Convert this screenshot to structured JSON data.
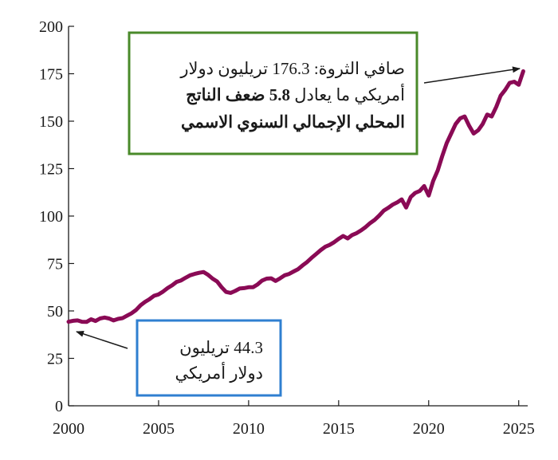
{
  "colors": {
    "series": "#8a0a55",
    "axis": "#1a1a1a",
    "box_green": "#4a8a2a",
    "box_blue": "#2f7fd0"
  },
  "chart_data": {
    "type": "line",
    "title": "",
    "xlabel": "",
    "ylabel": "",
    "xlim": [
      2000,
      2025.5
    ],
    "ylim": [
      0,
      200
    ],
    "grid": false,
    "x_ticks": [
      "2000",
      "2005",
      "2010",
      "2015",
      "2020",
      "2025"
    ],
    "y_ticks": [
      "0",
      "25",
      "50",
      "75",
      "100",
      "125",
      "150",
      "175",
      "200"
    ],
    "series": [
      {
        "x": [
          2000.0,
          2000.25,
          2000.5,
          2000.75,
          2001.0,
          2001.25,
          2001.5,
          2001.75,
          2002.0,
          2002.25,
          2002.5,
          2002.75,
          2003.0,
          2003.25,
          2003.5,
          2003.75,
          2004.0,
          2004.25,
          2004.5,
          2004.75,
          2005.0,
          2005.25,
          2005.5,
          2005.75,
          2006.0,
          2006.25,
          2006.5,
          2006.75,
          2007.0,
          2007.25,
          2007.5,
          2007.75,
          2008.0,
          2008.25,
          2008.5,
          2008.75,
          2009.0,
          2009.25,
          2009.5,
          2009.75,
          2010.0,
          2010.25,
          2010.5,
          2010.75,
          2011.0,
          2011.25,
          2011.5,
          2011.75,
          2012.0,
          2012.25,
          2012.5,
          2012.75,
          2013.0,
          2013.25,
          2013.5,
          2013.75,
          2014.0,
          2014.25,
          2014.5,
          2014.75,
          2015.0,
          2015.25,
          2015.5,
          2015.75,
          2016.0,
          2016.25,
          2016.5,
          2016.75,
          2017.0,
          2017.25,
          2017.5,
          2017.75,
          2018.0,
          2018.25,
          2018.5,
          2018.75,
          2019.0,
          2019.25,
          2019.5,
          2019.75,
          2020.0,
          2020.25,
          2020.5,
          2020.75,
          2021.0,
          2021.25,
          2021.5,
          2021.75,
          2022.0,
          2022.25,
          2022.5,
          2022.75,
          2023.0,
          2023.25,
          2023.5,
          2023.75,
          2024.0,
          2024.25,
          2024.5,
          2024.75,
          2025.0,
          2025.25
        ],
        "y": [
          44.3,
          44.8,
          45.0,
          44.3,
          44.2,
          45.6,
          44.7,
          46.0,
          46.5,
          46.0,
          45.0,
          45.8,
          46.2,
          47.5,
          48.8,
          50.5,
          53.0,
          54.8,
          56.2,
          58.0,
          58.7,
          60.2,
          62.0,
          63.5,
          65.3,
          66.1,
          67.5,
          68.8,
          69.5,
          70.1,
          70.5,
          69.0,
          67.0,
          65.5,
          62.5,
          60.0,
          59.5,
          60.5,
          61.8,
          62.0,
          62.5,
          62.5,
          64.0,
          66.0,
          67.0,
          67.2,
          65.8,
          67.2,
          68.8,
          69.5,
          70.8,
          72.0,
          74.0,
          75.8,
          78.0,
          80.0,
          82.0,
          83.8,
          84.8,
          86.2,
          88.0,
          89.5,
          88.2,
          90.0,
          91.0,
          92.5,
          94.2,
          96.3,
          98.0,
          100.2,
          102.8,
          104.3,
          106.0,
          107.2,
          108.8,
          104.5,
          110.0,
          112.2,
          113.2,
          115.8,
          110.8,
          118.5,
          124.0,
          131.5,
          138.5,
          143.5,
          148.5,
          151.5,
          152.5,
          147.5,
          143.5,
          145.2,
          148.5,
          153.5,
          152.5,
          157.5,
          163.5,
          166.5,
          170.2,
          170.8,
          169.2,
          176.3
        ]
      }
    ],
    "annotations": [
      {
        "box": "green",
        "lines": [
          "صافي الثروة: 176.3 تريليون دولار",
          "أمريكي ما يعادل 5.8 ضعف الناتج",
          "المحلي الإجمالي السنوي الاسمي"
        ],
        "points_to": [
          2025.25,
          176.3
        ]
      },
      {
        "box": "blue",
        "lines": [
          "44.3 تريليون",
          "دولار أمريكي"
        ],
        "points_to": [
          2000.0,
          44.3
        ]
      }
    ]
  }
}
